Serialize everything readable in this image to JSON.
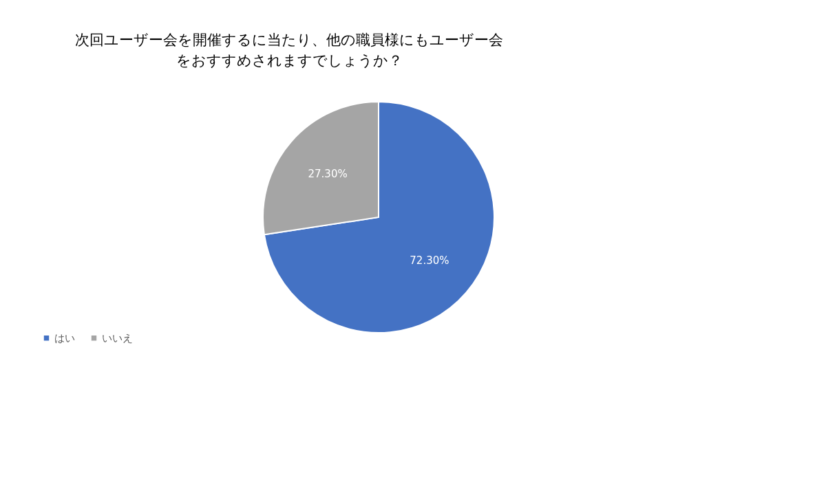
{
  "chart_data": {
    "type": "pie",
    "title": "次回ユーザー会を開催するに当たり、他の職員様にもユーザー会をおすすめされますでしょうか？",
    "categories": [
      "はい",
      "いいえ"
    ],
    "values": [
      72.3,
      27.3
    ],
    "value_labels": [
      "72.30%",
      "27.30%"
    ],
    "colors": [
      "#4472c4",
      "#a5a5a5"
    ],
    "legend": "bottom"
  }
}
